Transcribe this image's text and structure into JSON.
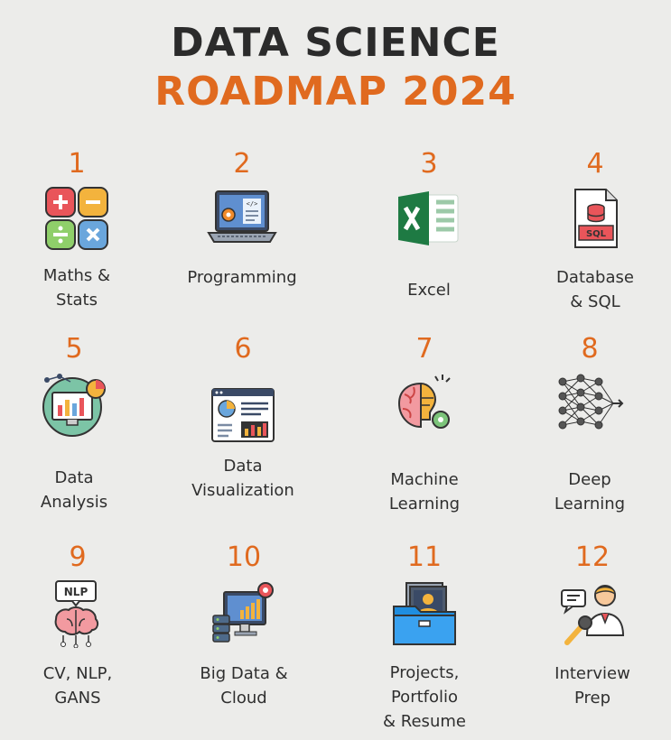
{
  "header": {
    "title_line1": "DATA SCIENCE",
    "title_line2": "ROADMAP 2024"
  },
  "accent_color": "#e06a1f",
  "steps": [
    {
      "number": "1",
      "label": "Maths &\nStats",
      "icon": "math-operators-icon"
    },
    {
      "number": "2",
      "label": "Programming",
      "icon": "laptop-code-icon"
    },
    {
      "number": "3",
      "label": "Excel",
      "icon": "excel-icon"
    },
    {
      "number": "4",
      "label": "Database\n& SQL",
      "icon": "sql-file-icon"
    },
    {
      "number": "5",
      "label": "Data\nAnalysis",
      "icon": "analysis-monitor-icon"
    },
    {
      "number": "6",
      "label": "Data\nVisualization",
      "icon": "dashboard-icon"
    },
    {
      "number": "7",
      "label": "Machine\nLearning",
      "icon": "brain-gear-icon"
    },
    {
      "number": "8",
      "label": "Deep\nLearning",
      "icon": "neural-network-icon"
    },
    {
      "number": "9",
      "label": "CV, NLP,\nGANS",
      "icon": "nlp-brain-icon"
    },
    {
      "number": "10",
      "label": "Big Data &\nCloud",
      "icon": "server-cloud-icon"
    },
    {
      "number": "11",
      "label": "Projects,\nPortfolio\n& Resume",
      "icon": "folder-portfolio-icon"
    },
    {
      "number": "12",
      "label": "Interview\nPrep",
      "icon": "interview-icon"
    }
  ]
}
